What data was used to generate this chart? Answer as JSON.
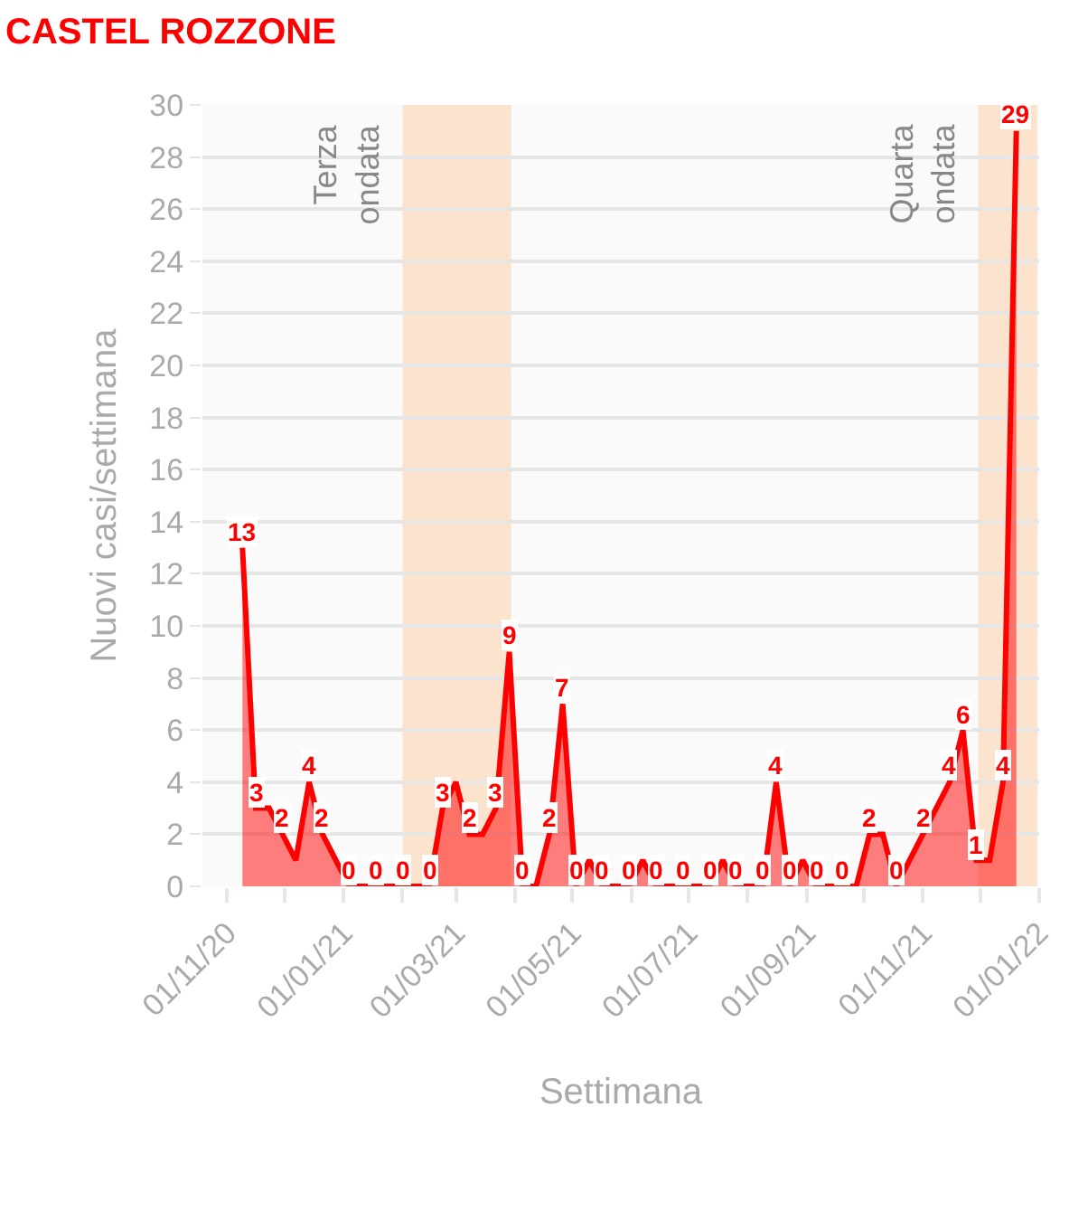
{
  "chart_data": {
    "type": "area",
    "title": "CASTEL ROZZONE",
    "xlabel": "Settimana",
    "ylabel": "Nuovi casi/settimana",
    "x": [
      "2020-11-09",
      "2020-11-16",
      "2020-11-23",
      "2020-11-30",
      "2020-12-07",
      "2020-12-14",
      "2020-12-21",
      "2020-12-28",
      "2021-01-04",
      "2021-01-11",
      "2021-01-18",
      "2021-01-25",
      "2021-02-01",
      "2021-02-08",
      "2021-02-15",
      "2021-02-22",
      "2021-03-01",
      "2021-03-08",
      "2021-03-15",
      "2021-03-22",
      "2021-03-29",
      "2021-04-05",
      "2021-04-12",
      "2021-04-19",
      "2021-04-26",
      "2021-05-03",
      "2021-05-10",
      "2021-05-17",
      "2021-05-24",
      "2021-05-31",
      "2021-06-07",
      "2021-06-14",
      "2021-06-21",
      "2021-06-28",
      "2021-07-05",
      "2021-07-12",
      "2021-07-19",
      "2021-07-26",
      "2021-08-02",
      "2021-08-09",
      "2021-08-16",
      "2021-08-23",
      "2021-08-30",
      "2021-09-06",
      "2021-09-13",
      "2021-09-20",
      "2021-09-27",
      "2021-10-04",
      "2021-10-11",
      "2021-10-18",
      "2021-10-25",
      "2021-11-01",
      "2021-11-08",
      "2021-11-15",
      "2021-11-22",
      "2021-11-29",
      "2021-12-06",
      "2021-12-13",
      "2021-12-20"
    ],
    "series": [
      {
        "color": "#ff0000",
        "values": [
          13,
          3,
          3,
          2,
          1,
          4,
          2,
          1,
          0,
          0,
          0,
          0,
          0,
          0,
          0,
          3,
          4,
          2,
          2,
          3,
          9,
          0,
          0,
          2,
          7,
          0,
          1,
          0,
          0,
          0,
          1,
          0,
          0,
          0,
          0,
          0,
          1,
          0,
          0,
          0,
          4,
          0,
          1,
          0,
          0,
          0,
          0,
          2,
          2,
          0,
          1,
          2,
          3,
          4,
          6,
          1,
          1,
          4,
          29
        ],
        "value_labels": [
          "13",
          "3",
          null,
          "2",
          null,
          "4",
          "2",
          null,
          "0",
          null,
          "0",
          null,
          "0",
          null,
          "0",
          "3",
          null,
          "2",
          null,
          "3",
          "9",
          "0",
          null,
          "2",
          "7",
          "0",
          null,
          "0",
          null,
          "0",
          null,
          "0",
          null,
          "0",
          null,
          "0",
          null,
          "0",
          null,
          "0",
          "4",
          "0",
          null,
          "0",
          null,
          "0",
          null,
          "2",
          null,
          "0",
          null,
          "2",
          null,
          "4",
          "6",
          "1",
          null,
          "4",
          "29"
        ]
      }
    ],
    "xlim": [
      "2020-10-19",
      "2022-01-01"
    ],
    "xticks": [
      {
        "value": "2020-11-01",
        "label": "01/11/20"
      },
      {
        "value": "2020-12-01",
        "label": null
      },
      {
        "value": "2021-01-01",
        "label": "01/01/21"
      },
      {
        "value": "2021-02-01",
        "label": null
      },
      {
        "value": "2021-03-01",
        "label": "01/03/21"
      },
      {
        "value": "2021-04-01",
        "label": null
      },
      {
        "value": "2021-05-01",
        "label": "01/05/21"
      },
      {
        "value": "2021-06-01",
        "label": null
      },
      {
        "value": "2021-07-01",
        "label": "01/07/21"
      },
      {
        "value": "2021-08-01",
        "label": null
      },
      {
        "value": "2021-09-01",
        "label": "01/09/21"
      },
      {
        "value": "2021-10-01",
        "label": null
      },
      {
        "value": "2021-11-01",
        "label": "01/11/21"
      },
      {
        "value": "2021-12-01",
        "label": null
      },
      {
        "value": "2022-01-01",
        "label": "01/01/22"
      }
    ],
    "ylim": [
      0,
      30
    ],
    "yticks": [
      0,
      2,
      4,
      6,
      8,
      10,
      12,
      14,
      16,
      18,
      20,
      22,
      24,
      26,
      28,
      30
    ],
    "bands": [
      {
        "axis": "x",
        "from": "2021-02-01",
        "to": "2021-03-30",
        "label": "Terza ondata",
        "color": "#fbd3b0"
      },
      {
        "axis": "x",
        "from": "2021-11-30",
        "to": "2021-12-31",
        "label": "Quarta ondata",
        "color": "#fbd3b0"
      }
    ],
    "grid": "y"
  }
}
